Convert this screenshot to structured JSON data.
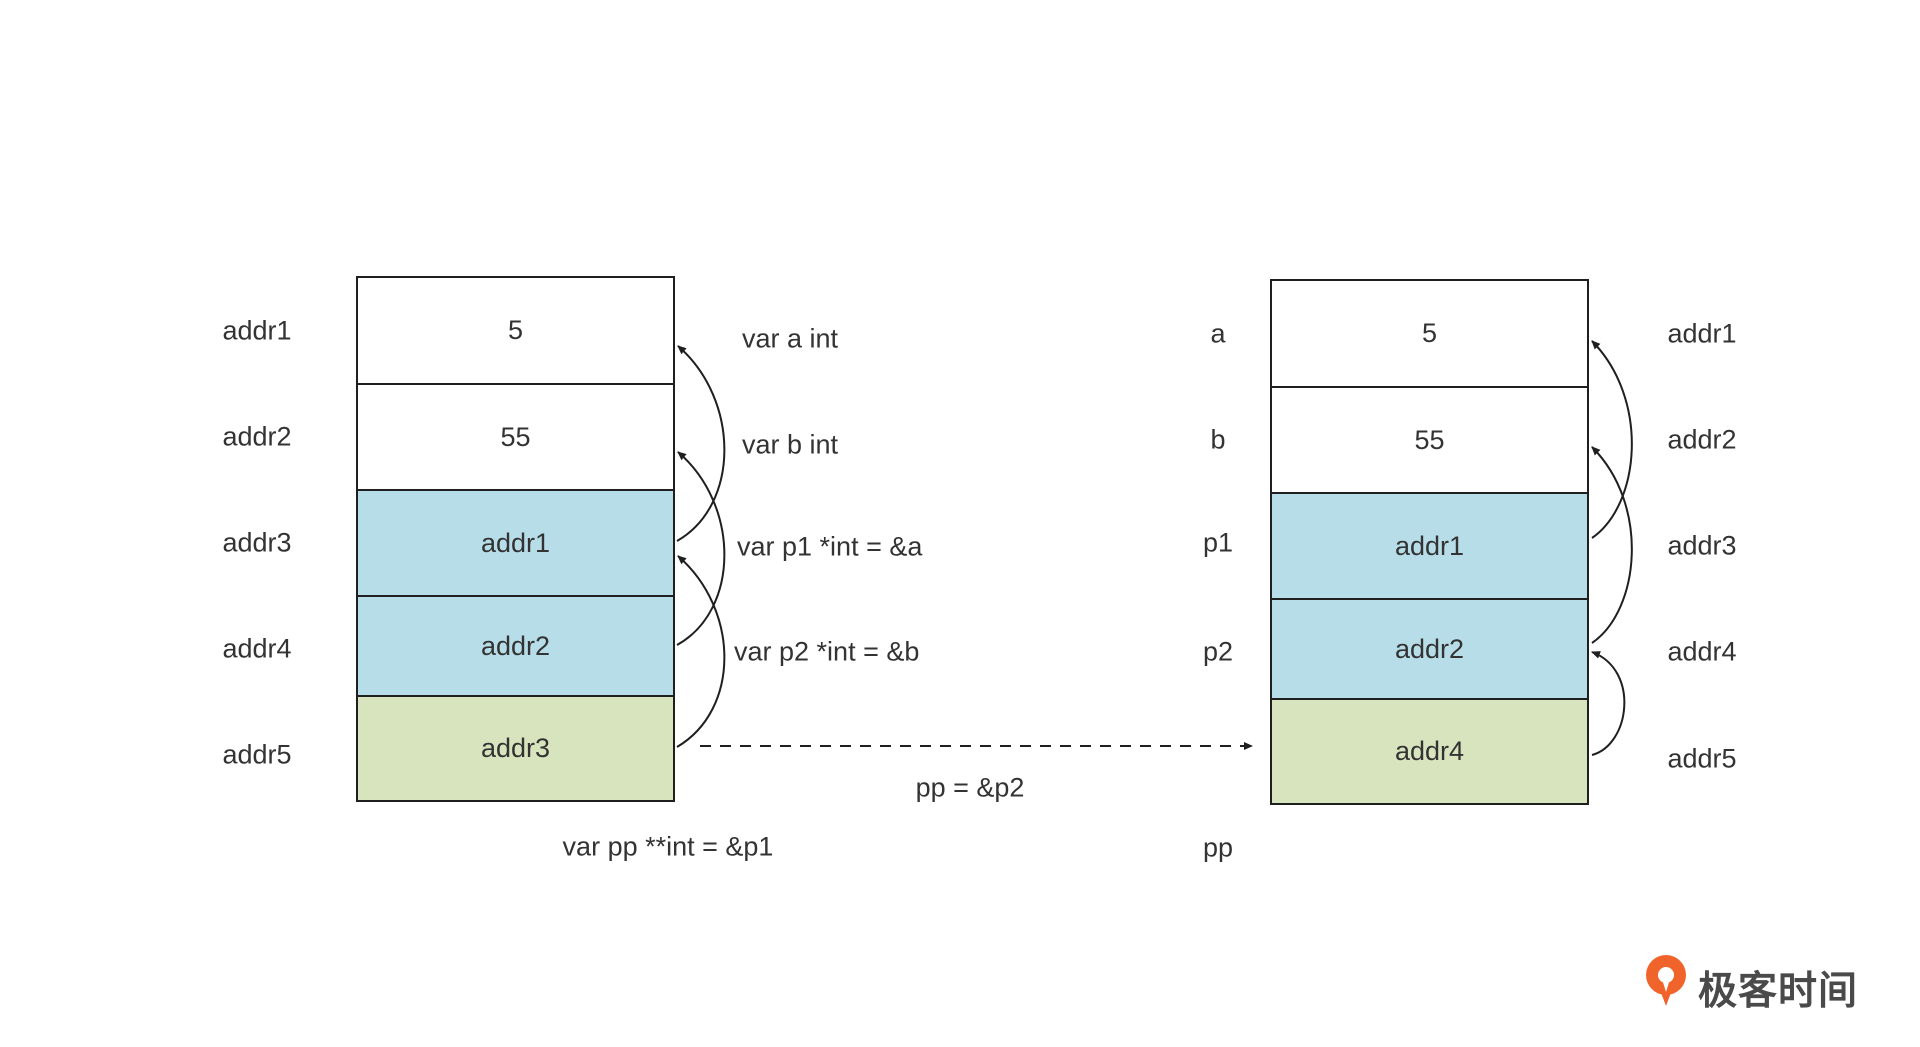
{
  "left_stack": {
    "addresses": [
      "addr1",
      "addr2",
      "addr3",
      "addr4",
      "addr5"
    ],
    "cells": [
      {
        "value": "5",
        "color": "#ffffff"
      },
      {
        "value": "55",
        "color": "#ffffff"
      },
      {
        "value": "addr1",
        "color": "#b6dde8"
      },
      {
        "value": "addr2",
        "color": "#b6dde8"
      },
      {
        "value": "addr3",
        "color": "#d7e4bd"
      }
    ],
    "declarations": [
      "var a int",
      "var b int",
      "var p1 *int = &a",
      "var p2 *int = &b"
    ],
    "bottom_declaration": "var pp **int = &p1"
  },
  "transition_label": "pp = &p2",
  "right_stack": {
    "variable_names": [
      "a",
      "b",
      "p1",
      "p2",
      "pp"
    ],
    "cells": [
      {
        "value": "5",
        "color": "#ffffff"
      },
      {
        "value": "55",
        "color": "#ffffff"
      },
      {
        "value": "addr1",
        "color": "#b6dde8"
      },
      {
        "value": "addr2",
        "color": "#b6dde8"
      },
      {
        "value": "addr4",
        "color": "#d7e4bd"
      }
    ],
    "addresses": [
      "addr1",
      "addr2",
      "addr3",
      "addr4",
      "addr5"
    ]
  },
  "logo": {
    "text": "极客时间",
    "color": "#f0642c"
  }
}
